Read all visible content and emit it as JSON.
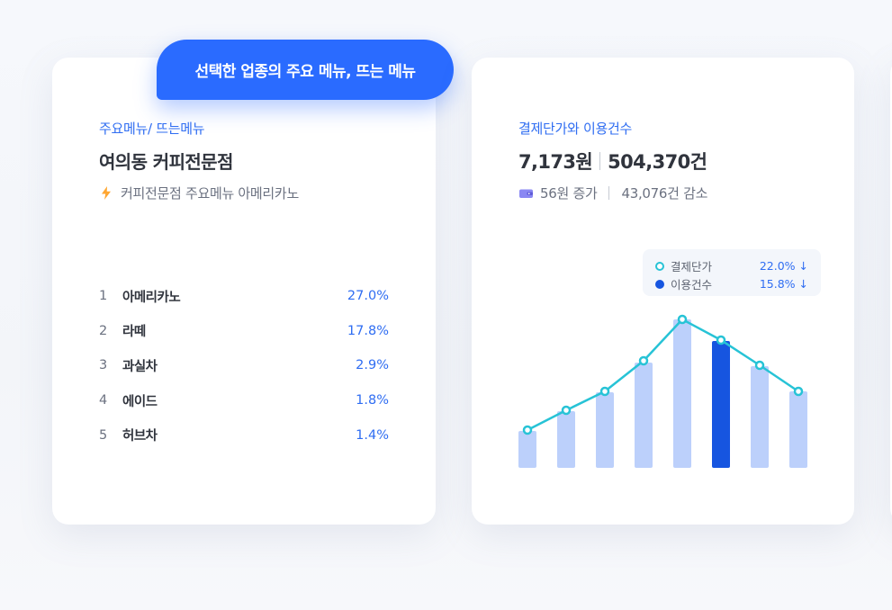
{
  "menu_card": {
    "pill_label": "선택한 업종의 주요 메뉴, 뜨는 메뉴",
    "eyebrow": "주요메뉴/ 뜨는메뉴",
    "title": "여의동 커피전문점",
    "subtitle": "커피전문점 주요메뉴 아메리카노",
    "subtitle_icon": "lightning-icon",
    "items": [
      {
        "rank": "1",
        "name": "아메리카노",
        "value": "27.0%"
      },
      {
        "rank": "2",
        "name": "라떼",
        "value": "17.8%"
      },
      {
        "rank": "3",
        "name": "과실차",
        "value": "2.9%"
      },
      {
        "rank": "4",
        "name": "에이드",
        "value": "1.8%"
      },
      {
        "rank": "5",
        "name": "허브차",
        "value": "1.4%"
      }
    ]
  },
  "pay_card": {
    "eyebrow": "결제단가와 이용건수",
    "price": "7,173원",
    "count": "504,370건",
    "change_icon": "wallet-icon",
    "change_price": "56원 증가",
    "change_count": "43,076건 감소",
    "legend": [
      {
        "name": "결제단가",
        "value": "22.0% ↓",
        "color": "#27c3d6"
      },
      {
        "name": "이용건수",
        "value": "15.8% ↓",
        "color": "#1655e0"
      }
    ]
  },
  "chart_data": {
    "type": "bar",
    "bar_values": [
      41,
      63,
      84,
      117,
      165,
      141,
      113,
      85
    ],
    "highlight_index": 5,
    "line_values": [
      42,
      64,
      85,
      119,
      165,
      142,
      114,
      85
    ],
    "colors": {
      "bar": "#bcd0fb",
      "bar_highlight": "#1655e0",
      "line": "#27c3d6"
    }
  }
}
